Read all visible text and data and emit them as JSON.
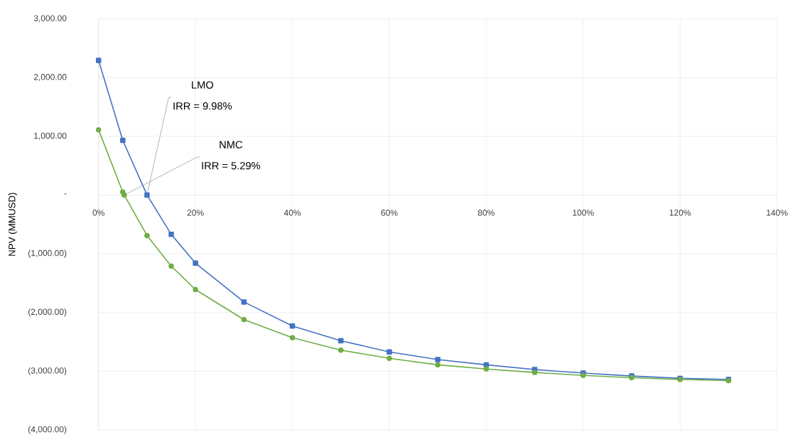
{
  "chart_data": {
    "type": "line",
    "ylabel": "NPV (MMUSD)",
    "series": [
      {
        "color": "#4472c4",
        "marker": "square",
        "x": [
          0,
          5,
          10,
          15,
          20,
          30,
          40,
          50,
          60,
          70,
          80,
          90,
          100,
          110,
          120,
          130
        ],
        "values": [
          2290,
          930,
          0,
          -670,
          -1160,
          -1820,
          -2230,
          -2480,
          -2670,
          -2800,
          -2890,
          -2970,
          -3030,
          -3080,
          -3120,
          -3140
        ]
      },
      {
        "color": "#70ad47",
        "marker": "circle",
        "x": [
          0,
          5,
          5.29,
          10,
          15,
          20,
          30,
          40,
          50,
          60,
          70,
          80,
          90,
          100,
          110,
          120,
          130
        ],
        "values": [
          1110,
          50,
          0,
          -690,
          -1210,
          -1610,
          -2120,
          -2430,
          -2640,
          -2780,
          -2890,
          -2960,
          -3020,
          -3070,
          -3110,
          -3140,
          -3160
        ]
      }
    ],
    "xlim": [
      0,
      140
    ],
    "xticks": [
      {
        "value": 0,
        "label": "0%"
      },
      {
        "value": 20,
        "label": "20%"
      },
      {
        "value": 40,
        "label": "40%"
      },
      {
        "value": 60,
        "label": "60%"
      },
      {
        "value": 80,
        "label": "80%"
      },
      {
        "value": 100,
        "label": "100%"
      },
      {
        "value": 120,
        "label": "120%"
      },
      {
        "value": 140,
        "label": "140%"
      }
    ],
    "ylim": [
      -4000,
      3000
    ],
    "yticks": [
      {
        "value": -4000,
        "label": "(4,000.00)"
      },
      {
        "value": -3000,
        "label": "(3,000.00)"
      },
      {
        "value": -2000,
        "label": "(2,000.00)"
      },
      {
        "value": -1000,
        "label": "(1,000.00)"
      },
      {
        "value": 0,
        "label": "-"
      },
      {
        "value": 1000,
        "label": "1,000.00"
      },
      {
        "value": 2000,
        "label": "2,000.00"
      },
      {
        "value": 3000,
        "label": "3,000.00"
      }
    ],
    "grid": true,
    "legend": false,
    "line_style": "solid",
    "annotations": [
      "LMO",
      {
        "text": "IRR = 9.98%",
        "x": 9.98,
        "y": 0
      },
      "NMC",
      {
        "text": "IRR = 5.29%",
        "x": 5.29,
        "y": 0
      }
    ]
  }
}
